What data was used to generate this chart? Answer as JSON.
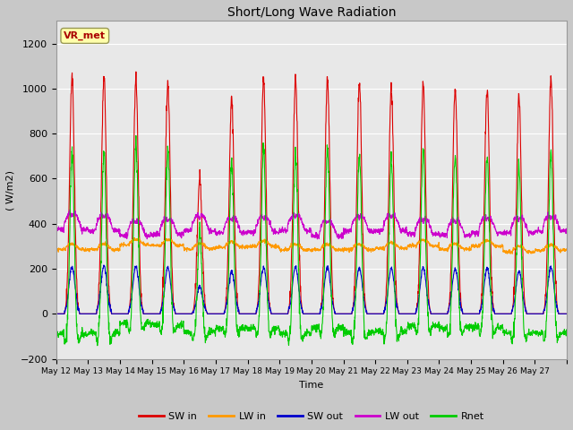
{
  "title": "Short/Long Wave Radiation",
  "xlabel": "Time",
  "ylabel": "( W/m2)",
  "ylim": [
    -200,
    1300
  ],
  "yticks": [
    -200,
    0,
    200,
    400,
    600,
    800,
    1000,
    1200
  ],
  "n_days": 16,
  "pts_per_day": 144,
  "station_label": "VR_met",
  "x_tick_labels": [
    "May 12",
    "May 13",
    "May 14",
    "May 15",
    "May 16",
    "May 17",
    "May 18",
    "May 19",
    "May 20",
    "May 21",
    "May 22",
    "May 23",
    "May 24",
    "May 25",
    "May 26",
    "May 27"
  ],
  "colors": {
    "SW_in": "#dd0000",
    "LW_in": "#ff9900",
    "SW_out": "#0000cc",
    "LW_out": "#cc00cc",
    "Rnet": "#00cc00"
  },
  "legend_labels": [
    "SW in",
    "LW in",
    "SW out",
    "LW out",
    "Rnet"
  ],
  "fig_bg": "#c8c8c8",
  "plot_bg": "#e8e8e8",
  "grid_color": "#ffffff",
  "station_box_color": "#ffffaa",
  "station_text_color": "#aa0000",
  "sw_amplitudes": [
    1050,
    1050,
    1050,
    1020,
    600,
    950,
    1040,
    1040,
    1040,
    1025,
    1000,
    1025,
    1000,
    1000,
    950,
    1040
  ],
  "sigma": 0.09
}
